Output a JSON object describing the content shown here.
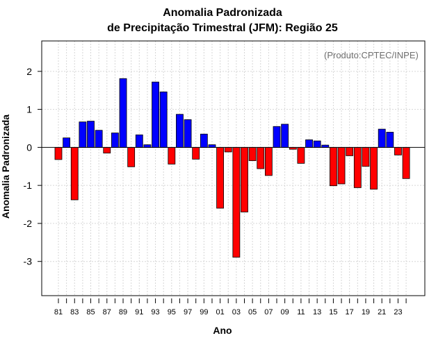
{
  "chart_data": {
    "type": "bar",
    "title": [
      "Anomalia Padronizada",
      "de Precipitação Trimestral (JFM): Região 25"
    ],
    "xlabel": "Ano",
    "ylabel": "Anomalia Padronizada",
    "annotation": "(Produto:CPTEC/INPE)",
    "ylim": [
      -3.9,
      2.8
    ],
    "yticks": [
      -3,
      -2,
      -1,
      0,
      1,
      2
    ],
    "ytick_labels": [
      "-3",
      "-2",
      "-1",
      "0",
      "1",
      "2"
    ],
    "categories": [
      "81",
      "82",
      "83",
      "84",
      "85",
      "86",
      "87",
      "88",
      "89",
      "90",
      "91",
      "92",
      "93",
      "94",
      "95",
      "96",
      "97",
      "98",
      "99",
      "00",
      "01",
      "02",
      "03",
      "04",
      "05",
      "06",
      "07",
      "08",
      "09",
      "10",
      "11",
      "12",
      "13",
      "14",
      "15",
      "16",
      "17",
      "18",
      "19",
      "20",
      "21",
      "22",
      "23",
      "24"
    ],
    "xtick_labels": [
      "81",
      "83",
      "85",
      "87",
      "89",
      "91",
      "93",
      "95",
      "97",
      "99",
      "01",
      "03",
      "05",
      "07",
      "09",
      "11",
      "13",
      "15",
      "17",
      "19",
      "21",
      "23"
    ],
    "values": [
      -0.32,
      0.25,
      -1.38,
      0.67,
      0.69,
      0.45,
      -0.15,
      0.38,
      1.81,
      -0.51,
      0.33,
      0.07,
      1.72,
      1.46,
      -0.44,
      0.87,
      0.73,
      -0.31,
      0.35,
      0.07,
      -1.6,
      -0.12,
      -2.89,
      -1.7,
      -0.35,
      -0.56,
      -0.74,
      0.55,
      0.61,
      -0.05,
      -0.42,
      0.2,
      0.17,
      0.06,
      -1.01,
      -0.96,
      -0.22,
      -1.06,
      -0.5,
      -1.1,
      0.48,
      0.4,
      -0.2,
      -0.82
    ],
    "positive_color": "#0000ff",
    "negative_color": "#ff0000",
    "grid": true
  }
}
